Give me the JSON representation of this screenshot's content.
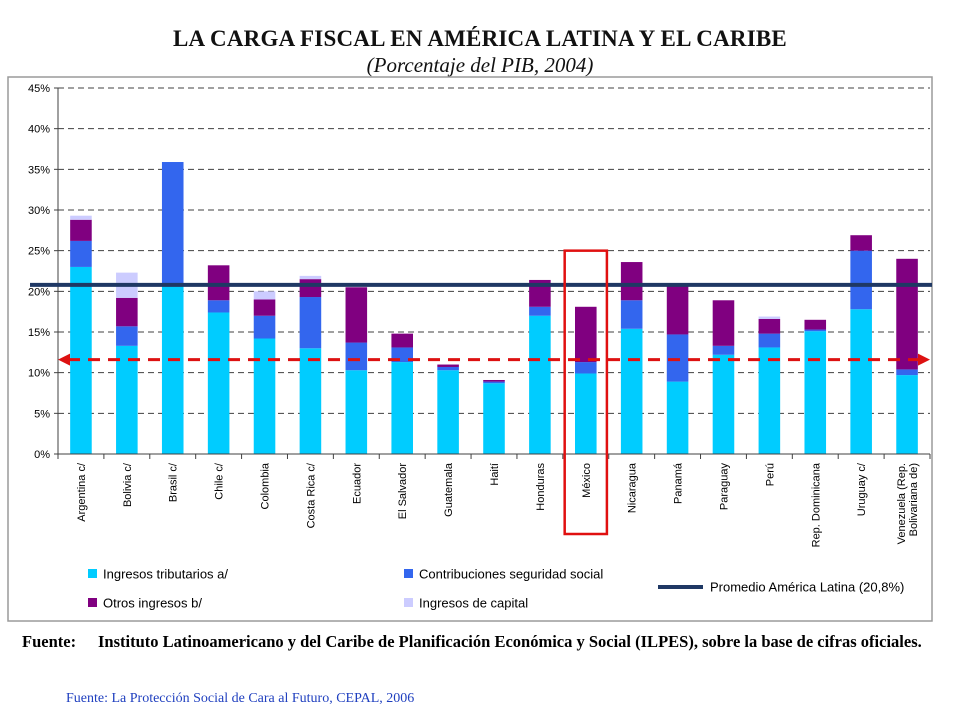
{
  "header": {
    "title": "LA CARGA FISCAL EN AMÉRICA LATINA Y EL CARIBE",
    "subtitle": "(Porcentaje del PIB, 2004)"
  },
  "source": {
    "label": "Fuente",
    "text": "Instituto Latinoamericano y del Caribe de Planificación Económica y Social (ILPES), sobre la base de cifras oficiales."
  },
  "footnote": "Fuente: La Protección Social de Cara al Futuro, CEPAL, 2006",
  "chart_data": {
    "type": "bar",
    "stacked": true,
    "categories": [
      "Argentina c/",
      "Bolivia c/",
      "Brasil c/",
      "Chile c/",
      "Colombia",
      "Costa Rica c/",
      "Ecuador",
      "El Salvador",
      "Guatemala",
      "Haití",
      "Honduras",
      "México",
      "Nicaragua",
      "Panamá",
      "Paraguay",
      "Perú",
      "Rep. Dominicana",
      "Uruguay c/",
      "Venezuela (Rep. Bolivariana de)"
    ],
    "series": [
      {
        "name": "Ingresos tributarios a/",
        "color": "#00ccff",
        "values": [
          23.0,
          13.3,
          21.0,
          17.4,
          14.2,
          13.0,
          10.3,
          11.3,
          10.3,
          8.7,
          17.0,
          9.9,
          15.4,
          8.9,
          12.2,
          13.1,
          15.1,
          17.8,
          9.7
        ]
      },
      {
        "name": "Contribuciones seguridad social",
        "color": "#3366ee",
        "values": [
          3.2,
          2.4,
          14.9,
          1.5,
          2.8,
          6.3,
          3.4,
          1.8,
          0.4,
          0.2,
          1.1,
          1.4,
          3.5,
          5.8,
          1.1,
          1.7,
          0.2,
          7.2,
          0.7
        ]
      },
      {
        "name": "Otros ingresos b/",
        "color": "#800080",
        "values": [
          2.6,
          3.5,
          0.0,
          4.3,
          2.0,
          2.2,
          6.8,
          1.7,
          0.3,
          0.2,
          3.3,
          6.8,
          4.7,
          6.3,
          5.6,
          1.8,
          1.2,
          1.9,
          13.6
        ]
      },
      {
        "name": "Ingresos de capital",
        "color": "#ccccff",
        "values": [
          0.5,
          3.1,
          0.0,
          0.0,
          1.0,
          0.4,
          0.0,
          0.0,
          0.0,
          0.0,
          0.0,
          0.0,
          0.0,
          0.0,
          0.0,
          0.3,
          0.0,
          0.0,
          0.0
        ]
      }
    ],
    "reference_line": {
      "name": "Promedio América Latina (20,8%)",
      "value": 20.8,
      "color": "#1f3864"
    },
    "marker_line": {
      "value": 11.6,
      "color": "#dd1111",
      "style": "dashed-arrows"
    },
    "highlight_category": "México",
    "yticks": [
      "0%",
      "5%",
      "10%",
      "15%",
      "20%",
      "25%",
      "30%",
      "35%",
      "40%",
      "45%"
    ],
    "ylim": [
      0,
      45
    ],
    "grid": "dashed-horizontal",
    "legend_position": "bottom"
  }
}
